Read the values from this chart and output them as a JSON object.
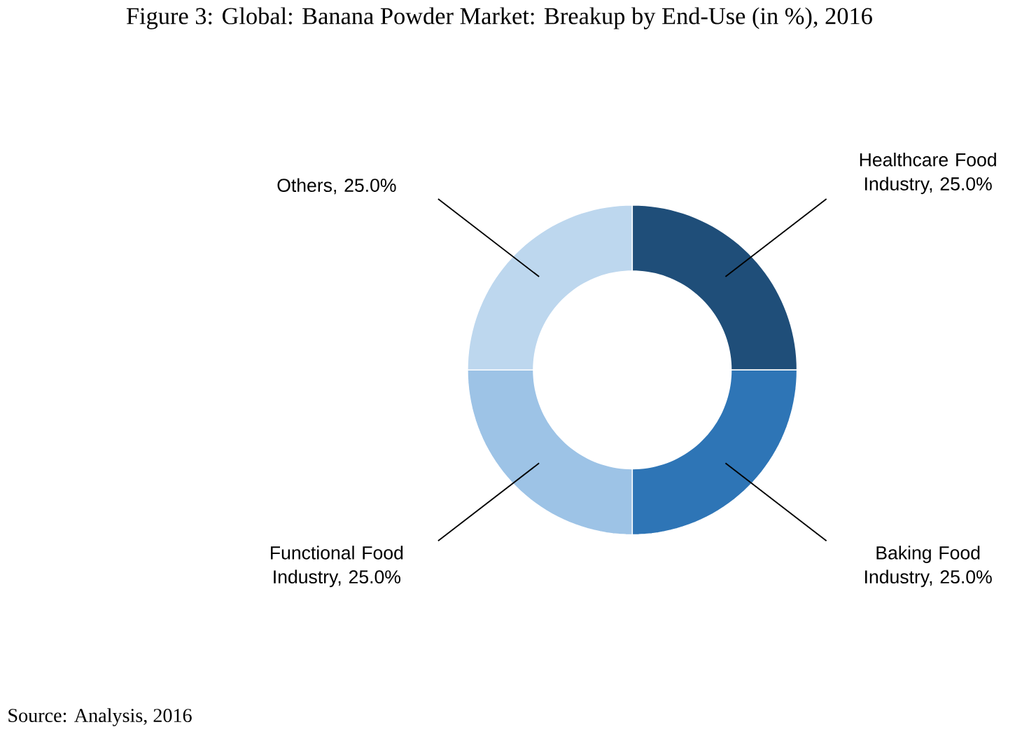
{
  "chart_data": {
    "type": "donut",
    "title": "Figure 3: Global: Banana Powder Market: Breakup by End-Use (in %), 2016",
    "categories": [
      "Healthcare Food Industry, 25.0%",
      "Baking Food Industry, 25.0%",
      "Functional Food Industry, 25.0%",
      "Others, 25.0%"
    ],
    "values": [
      25,
      25,
      25,
      25
    ],
    "colors": [
      "#1f4e79",
      "#2e75b6",
      "#9dc3e6",
      "#bdd7ee"
    ],
    "annotations": [
      "Source: Analysis, 2016"
    ]
  }
}
